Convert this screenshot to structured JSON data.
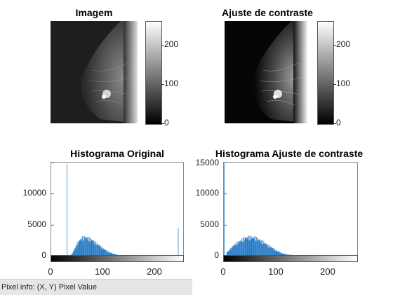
{
  "panels": {
    "image_title": "Imagem",
    "contrast_title": "Ajuste de contraste",
    "colorbar_ticks": [
      "200",
      "100",
      "0"
    ]
  },
  "status_bar": {
    "pixel_info": "Pixel info: (X, Y)  Pixel Value"
  },
  "chart_data": [
    {
      "type": "bar",
      "title": "Histograma Original",
      "xlabel": "",
      "ylabel": "",
      "xlim": [
        0,
        255
      ],
      "ylim": [
        0,
        15000
      ],
      "yticks": [
        "0",
        "5000",
        "10000"
      ],
      "xticks": [
        "0",
        "100",
        "200"
      ],
      "series": [
        {
          "description_points": [
            [
              30,
              14800
            ],
            [
              35,
              100
            ],
            [
              40,
              400
            ],
            [
              45,
              1200
            ],
            [
              50,
              2000
            ],
            [
              55,
              2500
            ],
            [
              60,
              2800
            ],
            [
              65,
              2900
            ],
            [
              70,
              2800
            ],
            [
              80,
              2400
            ],
            [
              90,
              1800
            ],
            [
              100,
              1200
            ],
            [
              110,
              700
            ],
            [
              120,
              400
            ],
            [
              130,
              200
            ],
            [
              140,
              100
            ],
            [
              150,
              60
            ],
            [
              160,
              40
            ],
            [
              200,
              20
            ],
            [
              245,
              4500
            ],
            [
              250,
              100
            ]
          ]
        }
      ],
      "color": "#1f77c4"
    },
    {
      "type": "bar",
      "title": "Histograma Ajuste de contraste",
      "xlabel": "",
      "ylabel": "",
      "xlim": [
        0,
        255
      ],
      "ylim": [
        0,
        15000
      ],
      "yticks": [
        "0",
        "5000",
        "10000",
        "15000"
      ],
      "xticks": [
        "0",
        "100",
        "200"
      ],
      "series": [
        {
          "description_points": [
            [
              0,
              14800
            ],
            [
              5,
              600
            ],
            [
              10,
              1000
            ],
            [
              20,
              1800
            ],
            [
              30,
              2300
            ],
            [
              40,
              2800
            ],
            [
              50,
              2900
            ],
            [
              60,
              2800
            ],
            [
              70,
              2400
            ],
            [
              80,
              1900
            ],
            [
              90,
              1400
            ],
            [
              100,
              900
            ],
            [
              110,
              500
            ],
            [
              120,
              300
            ],
            [
              140,
              150
            ],
            [
              160,
              80
            ],
            [
              200,
              30
            ],
            [
              255,
              4200
            ]
          ]
        }
      ],
      "color": "#1f77c4"
    }
  ]
}
